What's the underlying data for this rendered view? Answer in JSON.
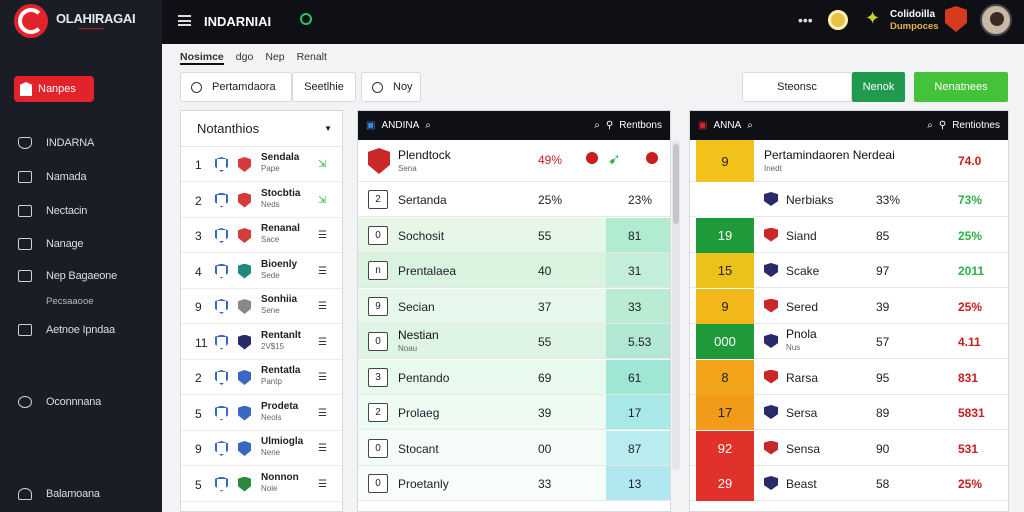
{
  "brand": {
    "name": "OLAHIRAGAI",
    "sub": "▪▪▪▪▪▪▪▪▪▪▪▪▪▪▪▪"
  },
  "topbar": {
    "title": "INDARNIAI",
    "user_line1": "Colidoilla",
    "user_line2": "Dumpoces"
  },
  "sidebar": {
    "badge": "Nanpes",
    "items": [
      {
        "label": "INDARNA",
        "icon": "gem-icon"
      },
      {
        "label": "Namada",
        "icon": "calendar-icon"
      },
      {
        "label": "Nectacin",
        "icon": "edit-icon"
      },
      {
        "label": "Nanage",
        "icon": "list-icon"
      },
      {
        "label": "Nep Bagaeone",
        "icon": "chat-icon"
      }
    ],
    "sub_items": [
      "Pecsaaooe",
      "Aetnoe Ipndaa"
    ],
    "bottom_items": [
      "Oconnnana",
      "Balamoana"
    ]
  },
  "tabs": [
    "Nosimce",
    "dgo",
    "Nep",
    "Renalt"
  ],
  "filters": {
    "search_value": "Pertamdaora",
    "select_value": "Seetlhie",
    "toggle_value": "Noy",
    "right_input": "Steonsc",
    "btn1": "Nenok",
    "btn2": "Nenatnees"
  },
  "left_list": {
    "header": "Notanthios",
    "rows": [
      {
        "n": "1",
        "team": "Sendala",
        "sub": "Pape",
        "c2": "#d63b3b"
      },
      {
        "n": "2",
        "team": "Stocbtia",
        "sub": "Neds",
        "c2": "#d63b3b"
      },
      {
        "n": "3",
        "team": "Renanal",
        "sub": "Sace",
        "c2": "#d63b3b"
      },
      {
        "n": "4",
        "team": "Bioenly",
        "sub": "Sede",
        "c2": "#1f8a7a"
      },
      {
        "n": "9",
        "team": "Sonhiia",
        "sub": "Sene",
        "c2": "#888"
      },
      {
        "n": "11",
        "team": "Rentanlt",
        "sub": "2V$15",
        "c2": "#2a2a6a"
      },
      {
        "n": "2",
        "team": "Rentatla",
        "sub": "Pantp",
        "c2": "#3a66c4"
      },
      {
        "n": "5",
        "team": "Prodeta",
        "sub": "Neols",
        "c2": "#3a66c4"
      },
      {
        "n": "9",
        "team": "Ulmiogla",
        "sub": "Nene",
        "c2": "#3a66c4"
      },
      {
        "n": "5",
        "team": "Nonnon",
        "sub": "Nole",
        "c2": "#2b8a3e"
      }
    ]
  },
  "mid_table": {
    "title": "ANDINA",
    "right": "Rentbons",
    "top_row": {
      "name": "Plendtock",
      "sub": "Sena",
      "v1": "49%"
    },
    "rows": [
      {
        "box": "2",
        "name": "Sertanda",
        "v1": "25%",
        "v2": "23%"
      },
      {
        "box": "0",
        "name": "Sochosit",
        "v1": "55",
        "v2": "81"
      },
      {
        "box": "n",
        "name": "Prentalaea",
        "v1": "40",
        "v2": "31"
      },
      {
        "box": "9",
        "name": "Secian",
        "v1": "37",
        "v2": "33"
      },
      {
        "box": "0",
        "name": "Nestian",
        "sub": "Noau",
        "v1": "55",
        "v2": "5.53"
      },
      {
        "box": "3",
        "name": "Pentando",
        "v1": "69",
        "v2": "61"
      },
      {
        "box": "2",
        "name": "Prolaeg",
        "v1": "39",
        "v2": "17"
      },
      {
        "box": "0",
        "name": "Stocant",
        "v1": "00",
        "v2": "87"
      },
      {
        "box": "0",
        "name": "Proetanly",
        "v1": "33",
        "v2": "13"
      }
    ]
  },
  "right_table": {
    "title": "ANNA",
    "right": "Rentiotnes",
    "top_row": {
      "block": "9",
      "name": "Pertamindaoren Nerdeai",
      "sub": "Inedt",
      "v2": "74.0"
    },
    "rows": [
      {
        "block": "",
        "name": "Nerbiaks",
        "v1": "33%",
        "v2": "73%",
        "color": "#ffffff"
      },
      {
        "block": "19",
        "name": "Siand",
        "v1": "85",
        "v2": "25%",
        "color": "#1f9a3a"
      },
      {
        "block": "15",
        "name": "Scake",
        "v1": "97",
        "v2": "2011",
        "color": "#ebc21a"
      },
      {
        "block": "9",
        "name": "Sered",
        "v1": "39",
        "v2": "25%",
        "color": "#f2b81a"
      },
      {
        "block": "000",
        "name": "Pnola",
        "sub": "Nus",
        "v1": "57",
        "v2": "4.11",
        "color": "#1f9a3a"
      },
      {
        "block": "8",
        "name": "Rarsa",
        "v1": "95",
        "v2": "831",
        "color": "#f2a51a"
      },
      {
        "block": "17",
        "name": "Sersa",
        "v1": "89",
        "v2": "5831",
        "color": "#f29a1a"
      },
      {
        "block": "92",
        "name": "Sensa",
        "v1": "90",
        "v2": "531",
        "color": "#e0322a"
      },
      {
        "block": "29",
        "name": "Beast",
        "v1": "58",
        "v2": "25%",
        "color": "#e0322a"
      }
    ]
  }
}
